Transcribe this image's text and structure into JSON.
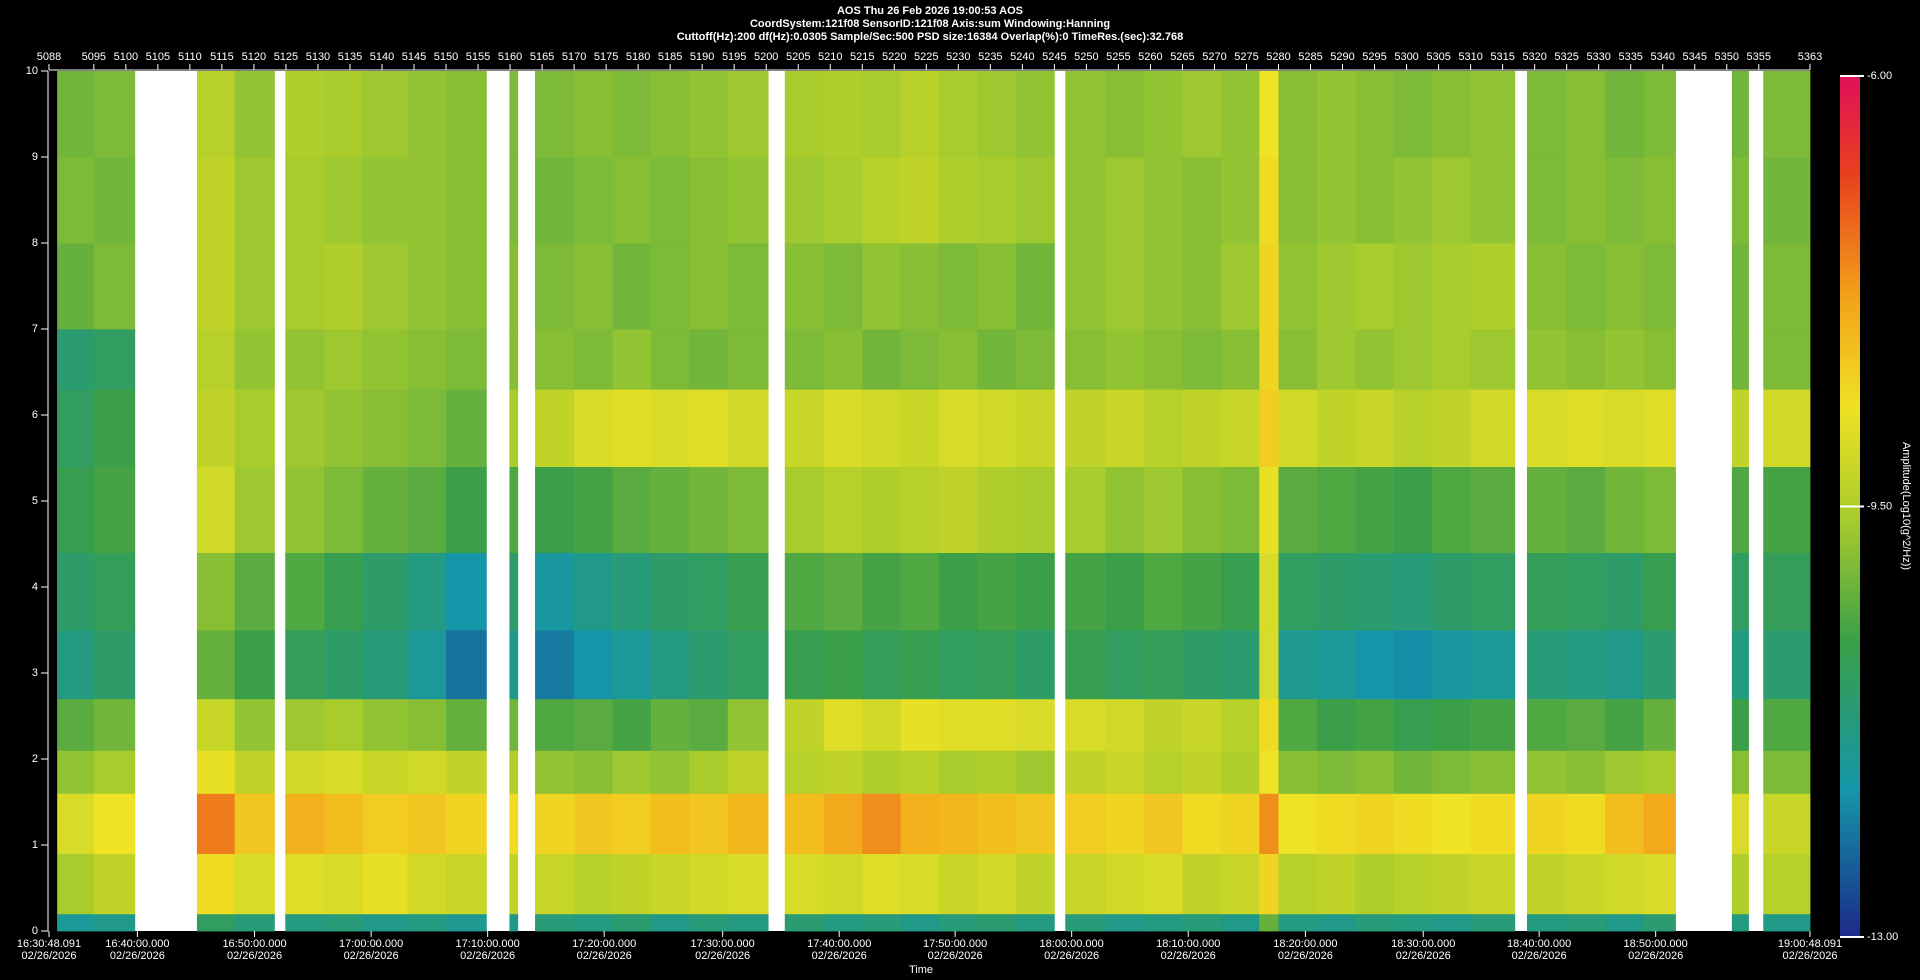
{
  "chart_data": {
    "type": "heatmap",
    "title": [
      "AOS  Thu 26 Feb 2026 19:00:53  AOS",
      "CoordSystem:121f08    SensorID:121f08    Axis:sum    Windowing:Hanning",
      "Cuttoff(Hz):200      df(Hz):0.0305      Sample/Sec:500      PSD size:16384      Overlap(%):0      TimeRes.(sec):32.768"
    ],
    "x_label": "Time",
    "colorbar_label": "Amplitude(Log10(g^2/Hz))",
    "xlim": [
      5088,
      5363
    ],
    "ylim": [
      0,
      10
    ],
    "yticks": [
      0,
      1,
      2,
      3,
      4,
      5,
      6,
      7,
      8,
      9,
      10
    ],
    "top_ticks": [
      5088,
      5095,
      5100,
      5105,
      5110,
      5115,
      5120,
      5125,
      5130,
      5135,
      5140,
      5145,
      5150,
      5155,
      5160,
      5165,
      5170,
      5175,
      5180,
      5185,
      5190,
      5195,
      5200,
      5205,
      5210,
      5215,
      5220,
      5225,
      5230,
      5235,
      5240,
      5245,
      5250,
      5255,
      5260,
      5265,
      5270,
      5275,
      5280,
      5285,
      5290,
      5295,
      5300,
      5305,
      5310,
      5315,
      5320,
      5325,
      5330,
      5335,
      5340,
      5345,
      5350,
      5355,
      5363
    ],
    "xticks": [
      {
        "value": 5088,
        "label": "16:30:48.091",
        "date": "02/26/2026"
      },
      {
        "value": 5101.8,
        "label": "16:40:00.000",
        "date": "02/26/2026"
      },
      {
        "value": 5120.1,
        "label": "16:50:00.000",
        "date": "02/26/2026"
      },
      {
        "value": 5138.3,
        "label": "17:00:00.000",
        "date": "02/26/2026"
      },
      {
        "value": 5156.5,
        "label": "17:10:00.000",
        "date": "02/26/2026"
      },
      {
        "value": 5174.7,
        "label": "17:20:00.000",
        "date": "02/26/2026"
      },
      {
        "value": 5193.2,
        "label": "17:30:00.000",
        "date": "02/26/2026"
      },
      {
        "value": 5211.4,
        "label": "17:40:00.000",
        "date": "02/26/2026"
      },
      {
        "value": 5229.5,
        "label": "17:50:00.000",
        "date": "02/26/2026"
      },
      {
        "value": 5247.7,
        "label": "18:00:00.000",
        "date": "02/26/2026"
      },
      {
        "value": 5265.9,
        "label": "18:10:00.000",
        "date": "02/26/2026"
      },
      {
        "value": 5284.2,
        "label": "18:20:00.000",
        "date": "02/26/2026"
      },
      {
        "value": 5302.6,
        "label": "18:30:00.000",
        "date": "02/26/2026"
      },
      {
        "value": 5320.7,
        "label": "18:40:00.000",
        "date": "02/26/2026"
      },
      {
        "value": 5338.9,
        "label": "18:50:00.000",
        "date": "02/26/2026"
      },
      {
        "value": 5363,
        "label": "19:00:48.091",
        "date": "02/26/2026"
      }
    ],
    "clim": [
      -13,
      -6
    ],
    "cticks": [
      {
        "value": -6,
        "label": "-6.00"
      },
      {
        "value": -9.5,
        "label": "-9.50"
      },
      {
        "value": -13,
        "label": "-13.00"
      }
    ],
    "colorscale": [
      [
        -13,
        "#1c2a8a"
      ],
      [
        -11.8,
        "#1596a8"
      ],
      [
        -10.6,
        "#3a9f48"
      ],
      [
        -9.6,
        "#a8cc2c"
      ],
      [
        -8.7,
        "#f0e224"
      ],
      [
        -7.8,
        "#f2a21a"
      ],
      [
        -6.8,
        "#e8401e"
      ],
      [
        -6,
        "#e0105a"
      ]
    ],
    "bins": [
      5089.3,
      5095,
      5101.4,
      5111.1,
      5117,
      5123.2,
      5124.9,
      5131,
      5137,
      5144,
      5150,
      5156.3,
      5159.9,
      5161.2,
      5163.9,
      5170,
      5176,
      5182,
      5188,
      5194,
      5200.3,
      5202.9,
      5209,
      5215,
      5221,
      5227,
      5233,
      5239,
      5245,
      5246.7,
      5253,
      5259,
      5265,
      5271,
      5277,
      5280,
      5286,
      5292,
      5298,
      5304,
      5310,
      5316.9,
      5318.8,
      5325,
      5331,
      5337,
      5342,
      5350.8,
      5353.4,
      5355.7,
      5363
    ],
    "ybins": [
      0,
      0.2,
      0.9,
      1.6,
      2.1,
      2.7,
      3.5,
      4.4,
      5.4,
      6.3,
      7.0,
      8.0,
      9.0,
      10
    ],
    "z": [
      [
        -11.6,
        -11.4,
        null,
        -10.9,
        -11.2,
        null,
        -11.3,
        -11.2,
        -11.4,
        -11.3,
        -11.5,
        null,
        -11.4,
        null,
        -11.2,
        -11.3,
        -11.1,
        -11.4,
        -11.2,
        -11.3,
        null,
        -11.1,
        -11.3,
        -11.2,
        -11.4,
        -11.2,
        -11.1,
        -11.3,
        null,
        -11.2,
        -11.4,
        -11.3,
        -11.2,
        -11.4,
        -10.2,
        -11.3,
        -11.4,
        -11.2,
        -11.3,
        -11.4,
        -11.2,
        null,
        -11.3,
        -11.2,
        -11.4,
        -11.1,
        null,
        -11.3,
        null,
        -11.4
      ],
      [
        -9.6,
        -9.3,
        null,
        -8.6,
        -9.0,
        null,
        -8.9,
        -9.0,
        -8.8,
        -9.1,
        -9.2,
        null,
        -9.3,
        null,
        -9.2,
        -9.4,
        -9.3,
        -9.2,
        -9.1,
        -9.0,
        null,
        -9.0,
        -9.1,
        -8.9,
        -9.0,
        -9.2,
        -9.1,
        -9.3,
        null,
        -9.2,
        -9.1,
        -9.0,
        -9.3,
        -9.2,
        -8.5,
        -9.4,
        -9.3,
        -9.5,
        -9.4,
        -9.3,
        -9.2,
        null,
        -9.3,
        -9.2,
        -9.1,
        -9.0,
        null,
        -9.5,
        null,
        -9.4
      ],
      [
        -9.0,
        -8.7,
        null,
        -7.4,
        -8.3,
        null,
        -8.0,
        -8.2,
        -8.4,
        -8.3,
        -8.5,
        null,
        -8.6,
        null,
        -8.5,
        -8.3,
        -8.4,
        -8.2,
        -8.3,
        -8.1,
        null,
        -8.2,
        -7.9,
        -7.6,
        -8.0,
        -8.1,
        -8.2,
        -8.3,
        null,
        -8.4,
        -8.5,
        -8.3,
        -8.6,
        -8.5,
        -7.6,
        -8.7,
        -8.6,
        -8.5,
        -8.6,
        -8.7,
        -8.6,
        null,
        -8.5,
        -8.6,
        -8.2,
        -7.9,
        null,
        -9.0,
        null,
        -9.2
      ],
      [
        -9.8,
        -9.6,
        null,
        -8.8,
        -9.3,
        null,
        -9.1,
        -9.0,
        -9.2,
        -9.1,
        -9.3,
        null,
        -9.5,
        null,
        -9.8,
        -9.9,
        -9.7,
        -9.8,
        -9.6,
        -9.3,
        null,
        -9.4,
        -9.3,
        -9.5,
        -9.4,
        -9.6,
        -9.5,
        -9.7,
        null,
        -9.3,
        -9.2,
        -9.4,
        -9.3,
        -9.5,
        -8.7,
        -9.9,
        -10.0,
        -9.9,
        -10.1,
        -10.0,
        -9.9,
        null,
        -9.8,
        -9.9,
        -9.7,
        -9.6,
        null,
        -9.9,
        null,
        -10.0
      ],
      [
        -10.3,
        -10.1,
        null,
        -9.2,
        -9.8,
        null,
        -9.7,
        -9.6,
        -9.8,
        -9.9,
        -10.2,
        null,
        -10.1,
        null,
        -10.4,
        -10.3,
        -10.5,
        -10.2,
        -10.3,
        -9.8,
        null,
        -9.3,
        -8.9,
        -9.1,
        -8.8,
        -8.9,
        -8.9,
        -9.0,
        null,
        -9.0,
        -9.1,
        -9.3,
        -9.2,
        -9.4,
        -8.6,
        -10.4,
        -10.6,
        -10.5,
        -10.7,
        -10.6,
        -10.5,
        null,
        -10.4,
        -10.3,
        -10.5,
        -10.2,
        null,
        -10.6,
        null,
        -10.4
      ],
      [
        -11.3,
        -11.0,
        null,
        -10.2,
        -10.6,
        null,
        -10.8,
        -11.0,
        -11.2,
        -11.6,
        -12.2,
        null,
        -11.4,
        null,
        -12.1,
        -11.8,
        -11.6,
        -11.3,
        -11.1,
        -10.9,
        null,
        -10.7,
        -10.6,
        -10.8,
        -10.7,
        -10.9,
        -10.8,
        -11.0,
        null,
        -10.7,
        -10.9,
        -10.8,
        -11.0,
        -11.1,
        -9.0,
        -11.5,
        -11.6,
        -11.8,
        -11.9,
        -11.7,
        -11.6,
        null,
        -11.2,
        -11.3,
        -11.4,
        -11.1,
        null,
        -11.3,
        null,
        -11.1
      ],
      [
        -11.0,
        -10.8,
        null,
        -9.9,
        -10.3,
        null,
        -10.4,
        -10.7,
        -11.0,
        -11.3,
        -11.8,
        null,
        -11.0,
        null,
        -11.7,
        -11.4,
        -11.2,
        -11.0,
        -10.9,
        -10.7,
        null,
        -10.4,
        -10.3,
        -10.5,
        -10.4,
        -10.6,
        -10.5,
        -10.6,
        null,
        -10.5,
        -10.6,
        -10.4,
        -10.5,
        -10.7,
        -9.0,
        -10.9,
        -11.0,
        -11.1,
        -11.2,
        -11.0,
        -10.9,
        null,
        -10.8,
        -10.9,
        -11.0,
        -10.7,
        null,
        -10.9,
        null,
        -10.8
      ],
      [
        -10.7,
        -10.5,
        null,
        -9.1,
        -9.7,
        null,
        -9.8,
        -10.0,
        -10.2,
        -10.3,
        -10.6,
        null,
        -10.4,
        null,
        -10.6,
        -10.5,
        -10.3,
        -10.2,
        -10.1,
        -10.0,
        null,
        -9.6,
        -9.4,
        -9.5,
        -9.4,
        -9.3,
        -9.5,
        -9.6,
        null,
        -9.6,
        -9.8,
        -9.7,
        -9.9,
        -10.0,
        -8.8,
        -10.3,
        -10.4,
        -10.5,
        -10.6,
        -10.4,
        -10.3,
        null,
        -10.2,
        -10.3,
        -10.1,
        -10.0,
        null,
        -10.4,
        null,
        -10.5
      ],
      [
        -10.9,
        -10.6,
        null,
        -9.3,
        -9.6,
        null,
        -9.7,
        -9.8,
        -9.9,
        -10.0,
        -10.2,
        null,
        -9.6,
        null,
        -9.3,
        -9.0,
        -8.9,
        -9.0,
        -8.9,
        -9.1,
        null,
        -9.2,
        -9.0,
        -9.1,
        -9.2,
        -9.0,
        -9.1,
        -9.2,
        null,
        -9.3,
        -9.2,
        -9.4,
        -9.3,
        -9.2,
        -8.4,
        -9.1,
        -9.3,
        -9.2,
        -9.4,
        -9.3,
        -9.1,
        null,
        -9.0,
        -8.9,
        -9.0,
        -8.9,
        null,
        -9.3,
        null,
        -9.1
      ],
      [
        -11.1,
        -10.9,
        null,
        -9.4,
        -9.8,
        null,
        -9.8,
        -9.7,
        -9.8,
        -9.9,
        -10.0,
        null,
        -9.9,
        null,
        -9.9,
        -10.0,
        -9.8,
        -10.0,
        -10.1,
        -10.0,
        null,
        -10.0,
        -9.9,
        -10.1,
        -10.0,
        -9.9,
        -10.1,
        -10.0,
        null,
        -9.9,
        -9.8,
        -9.9,
        -10.0,
        -9.9,
        -8.5,
        -9.9,
        -9.7,
        -9.8,
        -9.7,
        -9.6,
        -9.7,
        null,
        -9.8,
        -9.9,
        -9.8,
        -9.9,
        null,
        -10.1,
        null,
        -10.0
      ],
      [
        -10.2,
        -10.0,
        null,
        -9.3,
        -9.7,
        null,
        -9.6,
        -9.5,
        -9.7,
        -9.8,
        -9.9,
        null,
        -9.9,
        null,
        -10.0,
        -9.9,
        -10.1,
        -10.0,
        -9.9,
        -10.0,
        null,
        -9.9,
        -10.0,
        -9.8,
        -9.9,
        -10.0,
        -9.9,
        -10.1,
        null,
        -9.8,
        -9.7,
        -9.8,
        -9.9,
        -9.7,
        -8.5,
        -9.8,
        -9.7,
        -9.6,
        -9.7,
        -9.6,
        -9.5,
        null,
        -9.9,
        -10.0,
        -9.9,
        -10.0,
        null,
        -10.1,
        null,
        -10.0
      ],
      [
        -10.0,
        -10.1,
        null,
        -9.3,
        -9.7,
        null,
        -9.6,
        -9.7,
        -9.8,
        -9.8,
        -9.9,
        null,
        -10.0,
        null,
        -10.1,
        -10.0,
        -9.9,
        -10.0,
        -9.9,
        -9.8,
        null,
        -9.7,
        -9.6,
        -9.4,
        -9.3,
        -9.5,
        -9.6,
        -9.7,
        null,
        -9.8,
        -9.7,
        -9.8,
        -9.9,
        -9.8,
        -8.6,
        -9.9,
        -9.8,
        -9.9,
        -9.8,
        -9.7,
        -9.8,
        null,
        -10.0,
        -9.9,
        -10.0,
        -9.9,
        null,
        -10.0,
        null,
        -10.1
      ],
      [
        -10.1,
        -10.0,
        null,
        -9.4,
        -9.8,
        null,
        -9.5,
        -9.6,
        -9.7,
        -9.8,
        -9.9,
        null,
        -10.0,
        null,
        -10.0,
        -9.9,
        -10.0,
        -9.9,
        -9.8,
        -9.7,
        null,
        -9.6,
        -9.5,
        -9.6,
        -9.4,
        -9.6,
        -9.7,
        -9.8,
        null,
        -9.8,
        -9.9,
        -9.8,
        -9.7,
        -9.8,
        -8.7,
        -9.9,
        -9.8,
        -9.9,
        -10.0,
        -9.9,
        -9.8,
        null,
        -10.0,
        -9.9,
        -10.1,
        -10.0,
        null,
        -10.1,
        null,
        -10.0
      ]
    ]
  }
}
